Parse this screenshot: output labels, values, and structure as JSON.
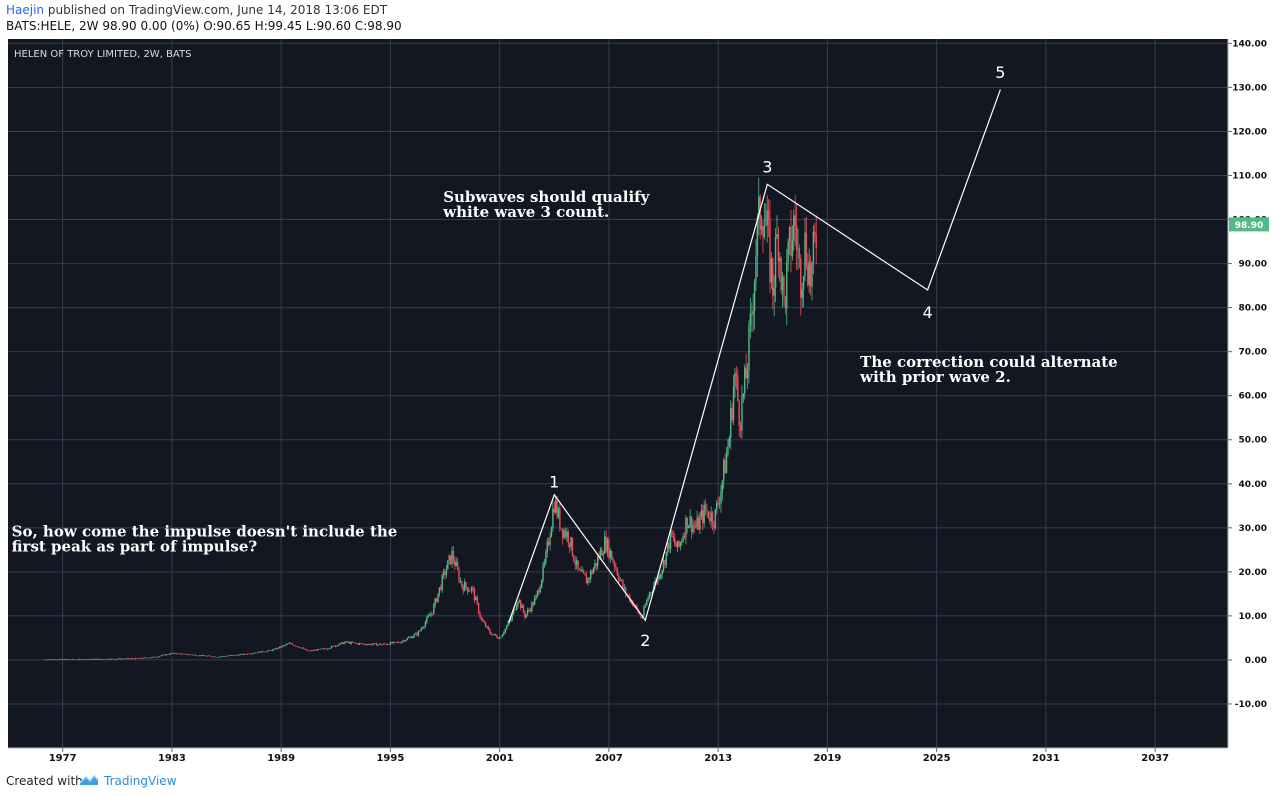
{
  "header": {
    "author": "Haejin",
    "published_text": "published on TradingView.com, June 14, 2018 13:06 EDT",
    "ohlc": "BATS:HELE, 2W  98.90 0.00 (0%) O:90.65 H:99.45 L:90.60 C:98.90"
  },
  "footer": {
    "created_with": "Created with",
    "brand": "TradingView"
  },
  "colors": {
    "background": "#131722",
    "grid": "#363c4e",
    "up": "#53b987",
    "down": "#eb4d5c",
    "last_price": "#53b987",
    "annotation": "#ffffff"
  },
  "chart_data": {
    "type": "candlestick",
    "title": "HELEN OF TROY LIMITED, 2W, BATS",
    "ylim": [
      -20,
      141
    ],
    "xlim": [
      1974.0,
      2041.0
    ],
    "y_ticks": [
      "-10.00",
      "0.00",
      "10.00",
      "20.00",
      "30.00",
      "40.00",
      "50.00",
      "60.00",
      "70.00",
      "80.00",
      "90.00",
      "100.00",
      "110.00",
      "120.00",
      "130.00",
      "140.00"
    ],
    "y_tick_values": [
      -10,
      0,
      10,
      20,
      30,
      40,
      50,
      60,
      70,
      80,
      90,
      100,
      110,
      120,
      130,
      140
    ],
    "x_ticks": [
      "1977",
      "1983",
      "1989",
      "1995",
      "2001",
      "2007",
      "2013",
      "2019",
      "2025",
      "2031",
      "2037"
    ],
    "x_tick_values": [
      1977,
      1983,
      1989,
      1995,
      2001,
      2007,
      2013,
      2019,
      2025,
      2031,
      2037
    ],
    "last_price": "98.90",
    "last_price_value": 98.9,
    "price_path": [
      [
        1976.0,
        0.1
      ],
      [
        1978.0,
        0.1
      ],
      [
        1979.5,
        0.2
      ],
      [
        1981.0,
        0.3
      ],
      [
        1982.0,
        0.6
      ],
      [
        1983.0,
        1.5
      ],
      [
        1984.0,
        1.2
      ],
      [
        1985.5,
        0.7
      ],
      [
        1987.0,
        1.3
      ],
      [
        1988.5,
        2.2
      ],
      [
        1989.5,
        3.8
      ],
      [
        1990.5,
        2.0
      ],
      [
        1991.5,
        2.6
      ],
      [
        1992.5,
        4.0
      ],
      [
        1993.5,
        3.6
      ],
      [
        1994.5,
        3.5
      ],
      [
        1995.5,
        4.0
      ],
      [
        1996.5,
        6.0
      ],
      [
        1997.3,
        11.0
      ],
      [
        1998.0,
        20.0
      ],
      [
        1998.4,
        24.0
      ],
      [
        1998.9,
        17.0
      ],
      [
        1999.5,
        16.0
      ],
      [
        2000.0,
        9.0
      ],
      [
        2000.5,
        6.0
      ],
      [
        2001.0,
        5.0
      ],
      [
        2001.6,
        9.0
      ],
      [
        2002.0,
        14.0
      ],
      [
        2002.4,
        10.0
      ],
      [
        2003.0,
        14.0
      ],
      [
        2003.5,
        22.0
      ],
      [
        2004.0,
        36.0
      ],
      [
        2004.4,
        30.0
      ],
      [
        2004.8,
        28.0
      ],
      [
        2005.3,
        20.0
      ],
      [
        2005.8,
        18.0
      ],
      [
        2006.3,
        22.0
      ],
      [
        2006.8,
        27.0
      ],
      [
        2007.3,
        22.0
      ],
      [
        2007.8,
        16.0
      ],
      [
        2008.3,
        13.0
      ],
      [
        2008.8,
        9.5
      ],
      [
        2009.2,
        15.0
      ],
      [
        2009.6,
        18.0
      ],
      [
        2010.0,
        22.0
      ],
      [
        2010.4,
        28.0
      ],
      [
        2010.8,
        25.0
      ],
      [
        2011.3,
        32.0
      ],
      [
        2011.8,
        30.0
      ],
      [
        2012.3,
        34.0
      ],
      [
        2012.8,
        32.0
      ],
      [
        2013.2,
        40.0
      ],
      [
        2013.6,
        50.0
      ],
      [
        2013.9,
        65.0
      ],
      [
        2014.2,
        55.0
      ],
      [
        2014.5,
        63.0
      ],
      [
        2014.8,
        76.0
      ],
      [
        2015.1,
        95.0
      ],
      [
        2015.4,
        104.0
      ],
      [
        2015.7,
        96.0
      ],
      [
        2016.0,
        85.0
      ],
      [
        2016.3,
        98.0
      ],
      [
        2016.6,
        80.0
      ],
      [
        2016.9,
        92.0
      ],
      [
        2017.2,
        100.0
      ],
      [
        2017.5,
        87.0
      ],
      [
        2017.8,
        95.0
      ],
      [
        2018.1,
        86.0
      ],
      [
        2018.45,
        98.9
      ]
    ],
    "wave_path": [
      [
        2001.5,
        8.5
      ],
      [
        2004.0,
        37.5
      ],
      [
        2009.0,
        9.0
      ],
      [
        2015.7,
        108.0
      ],
      [
        2024.5,
        84.0
      ],
      [
        2028.5,
        129.5
      ]
    ],
    "wave_labels": [
      {
        "label": "1",
        "x": 2004.0,
        "y": 40.5
      },
      {
        "label": "2",
        "x": 2009.0,
        "y": 4.5
      },
      {
        "label": "3",
        "x": 2015.7,
        "y": 112.0
      },
      {
        "label": "4",
        "x": 2024.5,
        "y": 79.0
      },
      {
        "label": "5",
        "x": 2028.5,
        "y": 133.5
      }
    ],
    "annotations": [
      {
        "lines": [
          "Subwaves should qualify",
          "white wave 3 count."
        ],
        "x": 1997.9,
        "y": 104.0
      },
      {
        "lines": [
          "So, how come the impulse doesn't include the",
          "first peak as part of impulse?"
        ],
        "x": 1974.2,
        "y": 28.0
      },
      {
        "lines": [
          "The correction could alternate",
          "with prior wave 2."
        ],
        "x": 2020.8,
        "y": 66.5
      }
    ]
  }
}
